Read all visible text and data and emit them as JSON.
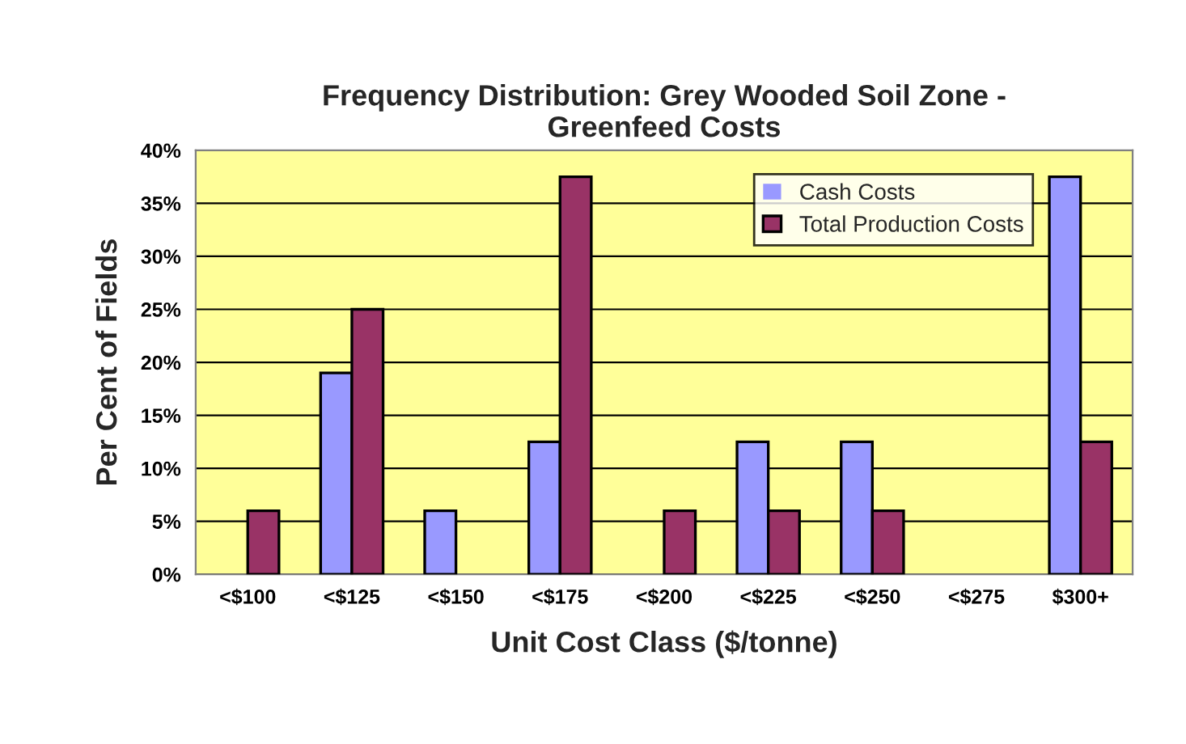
{
  "chart_data": {
    "type": "bar",
    "title": "Frequency Distribution: Grey Wooded Soil Zone -\nGreenfeed Costs",
    "xlabel": "Unit Cost Class ($/tonne)",
    "ylabel": "Per Cent of Fields",
    "categories": [
      "<$100",
      "<$125",
      "<$150",
      "<$175",
      "<$200",
      "<$225",
      "<$250",
      "<$275",
      "$300+"
    ],
    "series": [
      {
        "name": "Cash Costs",
        "color": "#9999ff",
        "values": [
          0,
          19,
          6,
          12.5,
          0,
          12.5,
          12.5,
          0,
          37.5
        ]
      },
      {
        "name": "Total Production Costs",
        "color": "#993366",
        "values": [
          6,
          25,
          0,
          37.5,
          6,
          6,
          6,
          0,
          12.5
        ]
      }
    ],
    "ylim": [
      0,
      40
    ],
    "yticks": [
      {
        "value": 0,
        "label": "0%"
      },
      {
        "value": 5,
        "label": "5%"
      },
      {
        "value": 10,
        "label": "10%"
      },
      {
        "value": 15,
        "label": "15%"
      },
      {
        "value": 20,
        "label": "20%"
      },
      {
        "value": 25,
        "label": "25%"
      },
      {
        "value": 30,
        "label": "30%"
      },
      {
        "value": 35,
        "label": "35%"
      },
      {
        "value": 40,
        "label": "40%"
      }
    ],
    "grid": "y",
    "legend": "top right"
  }
}
